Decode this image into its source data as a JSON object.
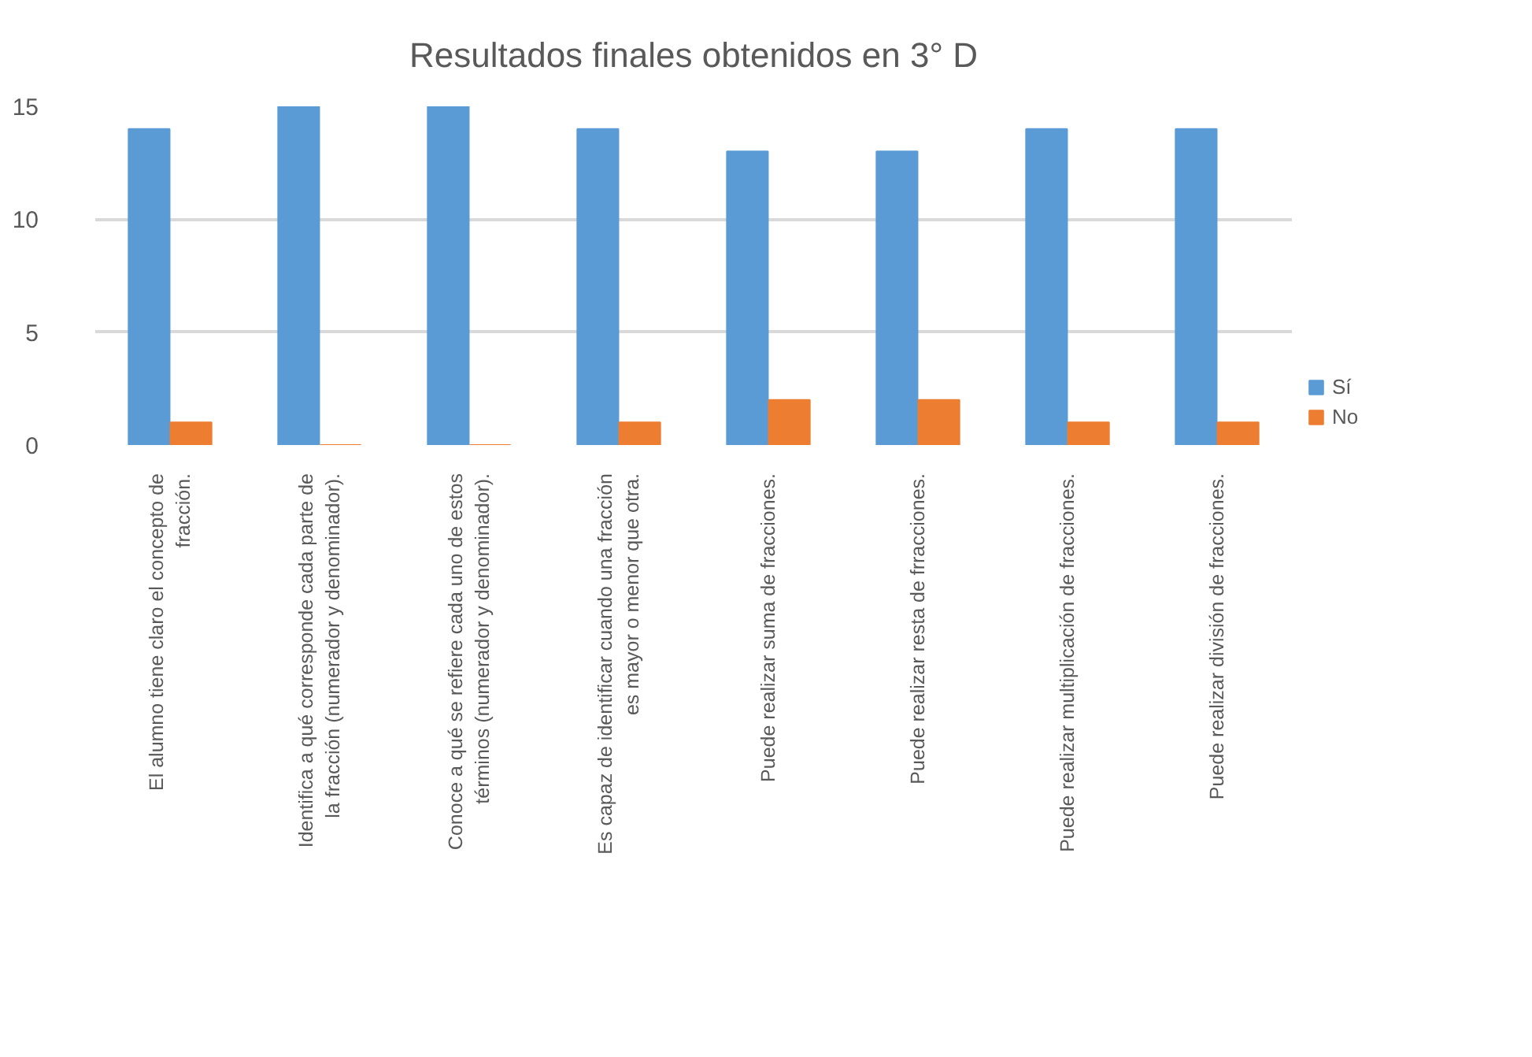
{
  "chart_data": {
    "type": "bar",
    "title": "Resultados finales obtenidos en 3° D",
    "categories": [
      "El alumno tiene claro el concepto de fracción.",
      "Identifica a qué corresponde cada parte de la fracción (numerador y denominador).",
      "Conoce a qué se refiere cada uno de estos términos (numerador y denominador).",
      "Es capaz de identificar cuando una fracción es mayor o menor que otra.",
      "Puede realizar suma de fracciones.",
      "Puede realizar resta de frracciones.",
      "Puede realizar multiplicación de fracciones.",
      "Puede realizar división de fracciones."
    ],
    "series": [
      {
        "name": "Sí",
        "color": "#5b9bd5",
        "values": [
          14,
          15,
          15,
          14,
          13,
          13,
          14,
          14
        ]
      },
      {
        "name": "No",
        "color": "#ed7d31",
        "values": [
          1,
          0,
          0,
          1,
          2,
          2,
          1,
          1
        ]
      }
    ],
    "ylim": [
      0,
      15
    ],
    "yticks": [
      0,
      5,
      10,
      15
    ],
    "grid": "y",
    "legend": "right"
  }
}
